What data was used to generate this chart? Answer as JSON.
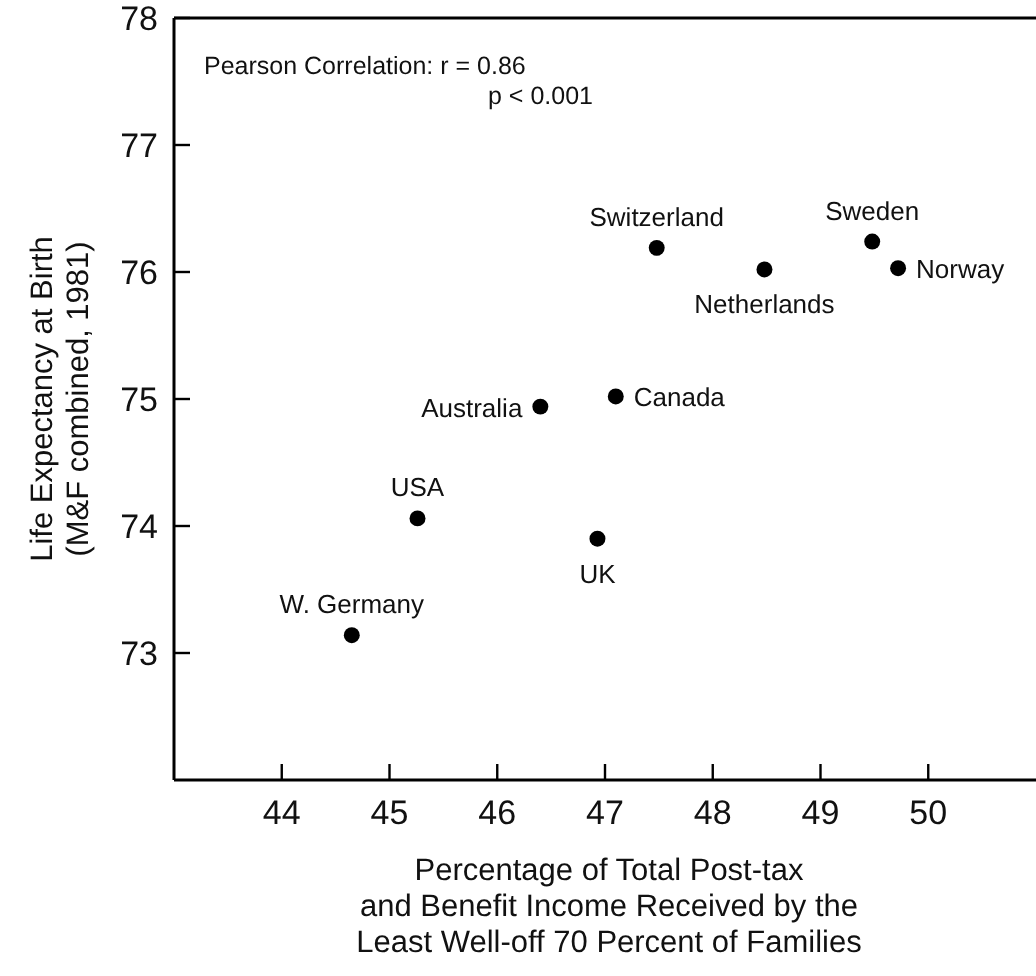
{
  "chart_data": {
    "type": "scatter",
    "xlabel": "Percentage of Total Post-tax\nand Benefit Income Received by the\nLeast Well-off 70 Percent of Families",
    "ylabel": "Life Expectancy at Birth\n(M&F combined, 1981)",
    "xlim": [
      43,
      51
    ],
    "xticks": [
      44,
      45,
      46,
      47,
      48,
      49,
      50
    ],
    "ylim": [
      72,
      78
    ],
    "yticks": [
      73,
      74,
      75,
      76,
      77,
      78
    ],
    "grid": false,
    "marker": "circle",
    "annotations": [
      "Pearson Correlation:  r = 0.86",
      "p < 0.001"
    ],
    "series": [
      {
        "name": "W. Germany",
        "color": "#000000",
        "x": [
          44.65
        ],
        "values": [
          73.14
        ]
      },
      {
        "name": "USA",
        "color": "#000000",
        "x": [
          45.26
        ],
        "values": [
          74.06
        ]
      },
      {
        "name": "UK",
        "color": "#000000",
        "x": [
          46.93
        ],
        "values": [
          73.9
        ]
      },
      {
        "name": "Australia",
        "color": "#000000",
        "x": [
          46.4
        ],
        "values": [
          74.94
        ]
      },
      {
        "name": "Canada",
        "color": "#000000",
        "x": [
          47.1
        ],
        "values": [
          75.02
        ]
      },
      {
        "name": "Switzerland",
        "color": "#000000",
        "x": [
          47.48
        ],
        "values": [
          76.19
        ]
      },
      {
        "name": "Netherlands",
        "color": "#000000",
        "x": [
          48.48
        ],
        "values": [
          76.02
        ]
      },
      {
        "name": "Sweden",
        "color": "#000000",
        "x": [
          49.48
        ],
        "values": [
          76.24
        ]
      },
      {
        "name": "Norway",
        "color": "#000000",
        "x": [
          49.72
        ],
        "values": [
          76.03
        ]
      }
    ]
  }
}
